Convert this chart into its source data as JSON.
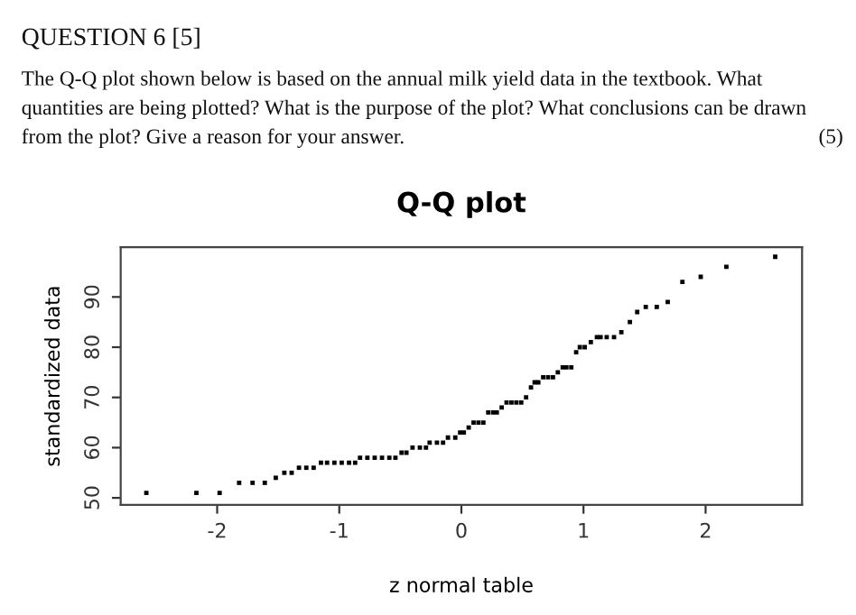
{
  "chart_data": {
    "type": "scatter",
    "title": "Q-Q plot",
    "xlabel": "z normal table",
    "ylabel": "standardized data",
    "annotations": [
      "QUESTION 6 [5]",
      "The Q-Q plot shown below is based on the annual milk yield data in the textbook. What",
      "quantities are being plotted? What is the purpose of the plot? What conclusions can be drawn",
      "from the plot? Give a reason for your answer.",
      "(5)"
    ],
    "x": [
      -2.58,
      -2.17,
      -1.98,
      -1.82,
      -1.71,
      -1.61,
      -1.52,
      -1.45,
      -1.39,
      -1.33,
      -1.27,
      -1.21,
      -1.15,
      -1.1,
      -1.04,
      -0.98,
      -0.92,
      -0.87,
      -0.83,
      -0.77,
      -0.71,
      -0.65,
      -0.59,
      -0.54,
      -0.49,
      -0.45,
      -0.4,
      -0.34,
      -0.29,
      -0.26,
      -0.2,
      -0.15,
      -0.11,
      -0.05,
      -0.01,
      0.02,
      0.06,
      0.1,
      0.14,
      0.18,
      0.22,
      0.26,
      0.29,
      0.33,
      0.37,
      0.41,
      0.45,
      0.49,
      0.53,
      0.57,
      0.6,
      0.63,
      0.67,
      0.71,
      0.75,
      0.79,
      0.83,
      0.86,
      0.9,
      0.94,
      0.97,
      1.01,
      1.06,
      1.11,
      1.14,
      1.19,
      1.25,
      1.31,
      1.38,
      1.44,
      1.51,
      1.6,
      1.69,
      1.81,
      1.96,
      2.17,
      2.57
    ],
    "series": [
      {
        "color": "#000000",
        "values": [
          51,
          51,
          51,
          53,
          53,
          53,
          54,
          55,
          55,
          56,
          56,
          56,
          57,
          57,
          57,
          57,
          57,
          57,
          58,
          58,
          58,
          58,
          58,
          58,
          59,
          59,
          60,
          60,
          60,
          61,
          61,
          61,
          62,
          62,
          63,
          63,
          64,
          65,
          65,
          65,
          67,
          67,
          67,
          68,
          69,
          69,
          69,
          69,
          70,
          72,
          73,
          73,
          74,
          74,
          74,
          75,
          76,
          76,
          76,
          79,
          80,
          80,
          81,
          82,
          82,
          82,
          82,
          83,
          85,
          87,
          88,
          88,
          89,
          93,
          94,
          96,
          98
        ]
      }
    ],
    "xlim": [
      -2.79,
      2.79
    ],
    "ylim": [
      48.6,
      99.9
    ],
    "xticks": [
      -2,
      -1,
      0,
      1,
      2
    ],
    "yticks": [
      50,
      60,
      70,
      80,
      90
    ],
    "marker": "square",
    "grid": false
  }
}
